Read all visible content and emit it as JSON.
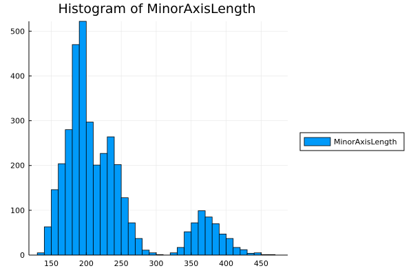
{
  "chart_data": {
    "type": "bar",
    "title": "Histogram of MinorAxisLength",
    "xlabel": "",
    "ylabel": "",
    "xlim": [
      118,
      488
    ],
    "ylim": [
      0,
      522
    ],
    "x_ticks": [
      150,
      200,
      250,
      300,
      350,
      400,
      450
    ],
    "y_ticks": [
      0,
      100,
      200,
      300,
      400,
      500
    ],
    "grid": true,
    "legend_position": "right",
    "bar_color": "#009AF9",
    "bin_width": 10,
    "bin_edges_start": [
      130,
      140,
      150,
      160,
      170,
      180,
      190,
      200,
      210,
      220,
      230,
      240,
      250,
      260,
      270,
      280,
      290,
      300,
      310,
      320,
      330,
      340,
      350,
      360,
      370,
      380,
      390,
      400,
      410,
      420,
      430,
      440,
      450,
      460
    ],
    "values": [
      5,
      63,
      146,
      204,
      280,
      470,
      522,
      297,
      201,
      227,
      264,
      202,
      128,
      72,
      37,
      11,
      5,
      1,
      0,
      5,
      17,
      52,
      72,
      99,
      85,
      70,
      47,
      37,
      17,
      12,
      4,
      5,
      1,
      1
    ],
    "series": [
      {
        "name": "MinorAxisLength"
      }
    ]
  }
}
